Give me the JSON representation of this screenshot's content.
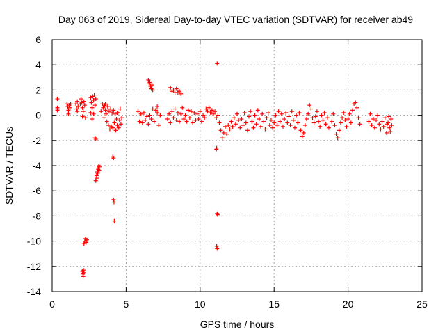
{
  "chart_data": {
    "type": "scatter",
    "title": "Day 063 of 2019, Sidereal Day-to-day VTEC variation (SDTVAR) for receiver ab49",
    "xlabel": "GPS time / hours",
    "ylabel": "SDTVAR / TECUs",
    "xlim": [
      0,
      25
    ],
    "ylim": [
      -14,
      6
    ],
    "xticks": [
      "0",
      "5",
      "10",
      "15",
      "20",
      "25"
    ],
    "yticks": [
      "6",
      "4",
      "2",
      "0",
      "-2",
      "-4",
      "-6",
      "-8",
      "-10",
      "-12",
      "-14"
    ],
    "grid": true,
    "marker": "+",
    "color": "#ff0000",
    "series": [
      {
        "name": "SDTVAR",
        "points": [
          [
            0.35,
            1.3
          ],
          [
            0.35,
            0.6
          ],
          [
            0.35,
            0.4
          ],
          [
            0.4,
            0.5
          ],
          [
            1.0,
            0.9
          ],
          [
            1.05,
            0.7
          ],
          [
            1.1,
            0.4
          ],
          [
            1.1,
            0.1
          ],
          [
            1.15,
            0.8
          ],
          [
            1.2,
            0.6
          ],
          [
            1.25,
            0.9
          ],
          [
            1.6,
            0.9
          ],
          [
            1.65,
            0.5
          ],
          [
            1.7,
            1.1
          ],
          [
            1.7,
            0.3
          ],
          [
            1.75,
            0.7
          ],
          [
            1.9,
            0.9
          ],
          [
            1.95,
            1.3
          ],
          [
            2.0,
            1.0
          ],
          [
            2.05,
            0.6
          ],
          [
            2.05,
            -0.1
          ],
          [
            2.1,
            0.3
          ],
          [
            2.15,
            1.1
          ],
          [
            2.2,
            0.8
          ],
          [
            2.25,
            -0.2
          ],
          [
            2.05,
            -12.4
          ],
          [
            2.08,
            -12.6
          ],
          [
            2.1,
            -12.8
          ],
          [
            2.12,
            -12.3
          ],
          [
            2.15,
            -12.5
          ],
          [
            2.15,
            -10.2
          ],
          [
            2.2,
            -10.0
          ],
          [
            2.25,
            -9.8
          ],
          [
            2.3,
            -10.1
          ],
          [
            2.35,
            -9.9
          ],
          [
            2.6,
            1.4
          ],
          [
            2.65,
            1.0
          ],
          [
            2.7,
            0.6
          ],
          [
            2.75,
            1.5
          ],
          [
            2.8,
            1.2
          ],
          [
            2.85,
            1.6
          ],
          [
            2.9,
            0.8
          ],
          [
            2.95,
            1.3
          ],
          [
            2.6,
            0.2
          ],
          [
            2.7,
            -0.3
          ],
          [
            2.8,
            0.1
          ],
          [
            2.9,
            -1.8
          ],
          [
            2.95,
            -1.9
          ],
          [
            2.95,
            -5.2
          ],
          [
            3.0,
            -4.8
          ],
          [
            3.02,
            -5.0
          ],
          [
            3.05,
            -4.5
          ],
          [
            3.08,
            -4.6
          ],
          [
            3.1,
            -4.2
          ],
          [
            3.12,
            -4.3
          ],
          [
            3.15,
            -4.0
          ],
          [
            3.18,
            -4.4
          ],
          [
            3.2,
            -4.1
          ],
          [
            3.3,
            0.3
          ],
          [
            3.4,
            0.9
          ],
          [
            3.45,
            0.6
          ],
          [
            3.5,
            -0.2
          ],
          [
            3.55,
            0.8
          ],
          [
            3.6,
            0.4
          ],
          [
            3.65,
            0.1
          ],
          [
            3.7,
            -0.5
          ],
          [
            3.75,
            0.7
          ],
          [
            3.8,
            -0.8
          ],
          [
            3.85,
            0.3
          ],
          [
            3.9,
            -1.1
          ],
          [
            3.95,
            0.5
          ],
          [
            4.0,
            -0.9
          ],
          [
            4.05,
            0.2
          ],
          [
            4.1,
            -1.0
          ],
          [
            4.15,
            0.4
          ],
          [
            4.2,
            -0.6
          ],
          [
            4.25,
            0.1
          ],
          [
            4.3,
            -1.2
          ],
          [
            4.35,
            -0.3
          ],
          [
            4.4,
            -0.8
          ],
          [
            4.45,
            0.2
          ],
          [
            4.5,
            -1.0
          ],
          [
            4.55,
            -0.4
          ],
          [
            4.6,
            0.5
          ],
          [
            4.65,
            -0.7
          ],
          [
            4.7,
            -0.2
          ],
          [
            3.6,
            0.9
          ],
          [
            4.4,
            0.2
          ],
          [
            4.1,
            -3.3
          ],
          [
            4.15,
            -3.4
          ],
          [
            4.15,
            -6.7
          ],
          [
            4.18,
            -6.9
          ],
          [
            4.2,
            -8.4
          ],
          [
            5.8,
            0.3
          ],
          [
            5.9,
            -0.5
          ],
          [
            6.0,
            0.1
          ],
          [
            6.1,
            -0.6
          ],
          [
            6.2,
            0.2
          ],
          [
            6.3,
            -0.4
          ],
          [
            6.4,
            -0.1
          ],
          [
            6.5,
            -0.7
          ],
          [
            6.6,
            0.0
          ],
          [
            6.7,
            -0.3
          ],
          [
            6.5,
            2.8
          ],
          [
            6.55,
            2.5
          ],
          [
            6.6,
            2.6
          ],
          [
            6.65,
            2.3
          ],
          [
            6.7,
            2.1
          ],
          [
            6.75,
            2.4
          ],
          [
            6.8,
            2.0
          ],
          [
            6.8,
            0.5
          ],
          [
            6.9,
            -0.5
          ],
          [
            7.0,
            0.4
          ],
          [
            7.1,
            0.2
          ],
          [
            7.2,
            -0.8
          ],
          [
            7.3,
            0.0
          ],
          [
            7.1,
            0.7
          ],
          [
            8.0,
            2.2
          ],
          [
            8.1,
            1.9
          ],
          [
            8.2,
            2.0
          ],
          [
            8.3,
            1.8
          ],
          [
            8.4,
            2.1
          ],
          [
            8.5,
            1.8
          ],
          [
            8.6,
            1.9
          ],
          [
            8.7,
            1.7
          ],
          [
            7.8,
            -0.3
          ],
          [
            7.9,
            0.1
          ],
          [
            8.0,
            -0.6
          ],
          [
            8.1,
            0.3
          ],
          [
            8.2,
            -0.2
          ],
          [
            8.3,
            0.5
          ],
          [
            8.4,
            -0.4
          ],
          [
            8.5,
            0.2
          ],
          [
            8.6,
            -0.5
          ],
          [
            8.7,
            0.1
          ],
          [
            8.8,
            0.6
          ],
          [
            8.9,
            -0.3
          ],
          [
            9.0,
            0.0
          ],
          [
            9.1,
            -0.5
          ],
          [
            9.2,
            0.4
          ],
          [
            9.3,
            -0.2
          ],
          [
            9.4,
            0.3
          ],
          [
            9.5,
            -0.6
          ],
          [
            9.6,
            0.2
          ],
          [
            9.7,
            -0.4
          ],
          [
            9.8,
            0.1
          ],
          [
            9.9,
            -0.3
          ],
          [
            10.0,
            0.3
          ],
          [
            10.1,
            -0.5
          ],
          [
            10.2,
            0.0
          ],
          [
            10.3,
            -0.2
          ],
          [
            10.4,
            0.5
          ],
          [
            10.5,
            0.3
          ],
          [
            10.6,
            0.6
          ],
          [
            10.7,
            0.2
          ],
          [
            11.15,
            4.1
          ],
          [
            11.1,
            -2.7
          ],
          [
            11.12,
            -2.6
          ],
          [
            11.15,
            -7.8
          ],
          [
            11.18,
            -7.9
          ],
          [
            11.12,
            -10.4
          ],
          [
            11.15,
            -10.6
          ],
          [
            10.8,
            0.4
          ],
          [
            10.9,
            0.1
          ],
          [
            11.0,
            0.3
          ],
          [
            11.1,
            -0.2
          ],
          [
            11.2,
            0.0
          ],
          [
            11.3,
            -0.6
          ],
          [
            11.4,
            -1.2
          ],
          [
            11.5,
            -1.8
          ],
          [
            11.6,
            -1.4
          ],
          [
            11.7,
            -0.9
          ],
          [
            11.8,
            -1.5
          ],
          [
            11.9,
            -0.8
          ],
          [
            12.0,
            -1.1
          ],
          [
            12.1,
            -0.5
          ],
          [
            12.2,
            -0.9
          ],
          [
            12.3,
            -0.2
          ],
          [
            12.4,
            -0.7
          ],
          [
            12.5,
            0.1
          ],
          [
            12.6,
            -0.4
          ],
          [
            12.7,
            -1.0
          ],
          [
            12.8,
            -0.3
          ],
          [
            12.9,
            -0.8
          ],
          [
            13.0,
            0.2
          ],
          [
            13.1,
            -0.6
          ],
          [
            13.2,
            -1.2
          ],
          [
            13.3,
            -0.1
          ],
          [
            13.4,
            0.3
          ],
          [
            13.5,
            -0.5
          ],
          [
            13.6,
            -1.0
          ],
          [
            13.7,
            0.0
          ],
          [
            13.8,
            -0.7
          ],
          [
            13.9,
            0.4
          ],
          [
            14.0,
            -0.3
          ],
          [
            14.1,
            -0.9
          ],
          [
            14.2,
            0.1
          ],
          [
            14.3,
            -0.5
          ],
          [
            14.4,
            -1.1
          ],
          [
            14.5,
            -0.2
          ],
          [
            14.6,
            0.2
          ],
          [
            14.7,
            -0.8
          ],
          [
            14.8,
            -0.4
          ],
          [
            14.9,
            -1.0
          ],
          [
            15.0,
            -0.6
          ],
          [
            15.1,
            0.0
          ],
          [
            15.2,
            -0.8
          ],
          [
            15.3,
            0.3
          ],
          [
            15.4,
            -0.5
          ],
          [
            15.5,
            0.1
          ],
          [
            15.6,
            -0.9
          ],
          [
            15.7,
            -0.3
          ],
          [
            15.8,
            0.2
          ],
          [
            15.9,
            -0.6
          ],
          [
            16.0,
            -0.1
          ],
          [
            16.1,
            -0.8
          ],
          [
            16.2,
            0.3
          ],
          [
            16.3,
            -0.4
          ],
          [
            16.4,
            -1.0
          ],
          [
            16.5,
            0.0
          ],
          [
            16.6,
            -0.6
          ],
          [
            16.7,
            0.2
          ],
          [
            16.8,
            -1.2
          ],
          [
            16.9,
            -1.7
          ],
          [
            17.0,
            -1.4
          ],
          [
            17.1,
            -0.8
          ],
          [
            17.2,
            -0.3
          ],
          [
            17.3,
            0.1
          ],
          [
            17.4,
            0.8
          ],
          [
            17.5,
            0.5
          ],
          [
            17.6,
            -0.2
          ],
          [
            17.7,
            -0.6
          ],
          [
            17.8,
            -0.1
          ],
          [
            17.9,
            0.3
          ],
          [
            18.0,
            -0.5
          ],
          [
            18.1,
            -0.9
          ],
          [
            18.2,
            0.0
          ],
          [
            18.3,
            -0.4
          ],
          [
            18.4,
            0.2
          ],
          [
            18.5,
            -0.7
          ],
          [
            18.6,
            -0.2
          ],
          [
            18.7,
            -1.0
          ],
          [
            18.9,
            -0.5
          ],
          [
            19.0,
            0.1
          ],
          [
            19.1,
            -0.8
          ],
          [
            19.2,
            -1.5
          ],
          [
            19.3,
            -1.8
          ],
          [
            19.4,
            -1.2
          ],
          [
            19.5,
            -0.6
          ],
          [
            19.6,
            -0.2
          ],
          [
            19.7,
            0.2
          ],
          [
            19.8,
            -0.4
          ],
          [
            19.9,
            -0.9
          ],
          [
            20.0,
            -0.3
          ],
          [
            20.1,
            0.1
          ],
          [
            20.2,
            -0.6
          ],
          [
            20.3,
            0.4
          ],
          [
            20.4,
            0.9
          ],
          [
            20.5,
            1.0
          ],
          [
            20.6,
            0.6
          ],
          [
            20.7,
            -0.2
          ],
          [
            20.8,
            -0.7
          ],
          [
            21.4,
            -0.5
          ],
          [
            21.5,
            0.1
          ],
          [
            21.6,
            -0.8
          ],
          [
            21.7,
            -0.3
          ],
          [
            21.8,
            -1.0
          ],
          [
            21.9,
            -0.4
          ],
          [
            22.0,
            0.0
          ],
          [
            22.1,
            -0.7
          ],
          [
            22.2,
            -1.1
          ],
          [
            22.3,
            -0.5
          ],
          [
            22.4,
            -0.9
          ],
          [
            22.5,
            -0.2
          ],
          [
            22.6,
            -1.4
          ],
          [
            22.7,
            -0.6
          ],
          [
            22.8,
            -1.0
          ],
          [
            22.9,
            -0.3
          ],
          [
            22.95,
            -0.8
          ],
          [
            22.85,
            -1.3
          ],
          [
            22.75,
            -0.1
          ],
          [
            22.65,
            -0.7
          ]
        ]
      }
    ]
  }
}
